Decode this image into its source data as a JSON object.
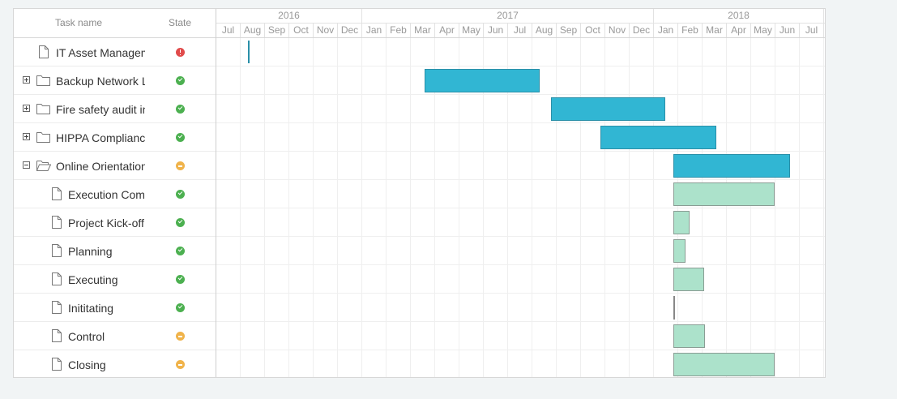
{
  "grid": {
    "header": {
      "task_name": "Task name",
      "state": "State"
    },
    "rows": [
      {
        "label": "IT Asset Managem",
        "level": 0,
        "icon": "file-icon",
        "toggle": "none",
        "state": "error"
      },
      {
        "label": "Backup Network Li",
        "level": 0,
        "icon": "folder-icon",
        "toggle": "plus",
        "state": "done"
      },
      {
        "label": "Fire safety audit in",
        "level": 0,
        "icon": "folder-icon",
        "toggle": "plus",
        "state": "done"
      },
      {
        "label": "HIPPA Compliance",
        "level": 0,
        "icon": "folder-icon",
        "toggle": "plus",
        "state": "done"
      },
      {
        "label": "Online Orientation",
        "level": 0,
        "icon": "folder-open-icon",
        "toggle": "minus",
        "state": "in-progress"
      },
      {
        "label": "Execution Comp",
        "level": 1,
        "icon": "file-icon",
        "toggle": "none",
        "state": "done"
      },
      {
        "label": "Project Kick-off I",
        "level": 1,
        "icon": "file-icon",
        "toggle": "none",
        "state": "done"
      },
      {
        "label": "Planning",
        "level": 1,
        "icon": "file-icon",
        "toggle": "none",
        "state": "done"
      },
      {
        "label": "Executing",
        "level": 1,
        "icon": "file-icon",
        "toggle": "none",
        "state": "done"
      },
      {
        "label": "Inititating",
        "level": 1,
        "icon": "file-icon",
        "toggle": "none",
        "state": "done"
      },
      {
        "label": "Control",
        "level": 1,
        "icon": "file-icon",
        "toggle": "none",
        "state": "in-progress"
      },
      {
        "label": "Closing",
        "level": 1,
        "icon": "file-icon",
        "toggle": "none",
        "state": "in-progress"
      }
    ]
  },
  "timeline": {
    "years": [
      {
        "label": "2016",
        "months": 6
      },
      {
        "label": "2017",
        "months": 12
      },
      {
        "label": "2018",
        "months": 7
      }
    ],
    "months": [
      "Jul",
      "Aug",
      "Sep",
      "Oct",
      "Nov",
      "Dec",
      "Jan",
      "Feb",
      "Mar",
      "Apr",
      "May",
      "Jun",
      "Jul",
      "Aug",
      "Sep",
      "Oct",
      "Nov",
      "Dec",
      "Jan",
      "Feb",
      "Mar",
      "Apr",
      "May",
      "Jun",
      "Jul"
    ],
    "bars": [
      {
        "row": 0,
        "start": 1.3,
        "end": 1.3,
        "kind": "milestone"
      },
      {
        "row": 1,
        "start": 8.55,
        "end": 13.3,
        "kind": "project"
      },
      {
        "row": 2,
        "start": 13.75,
        "end": 18.45,
        "kind": "project"
      },
      {
        "row": 3,
        "start": 15.8,
        "end": 20.55,
        "kind": "project"
      },
      {
        "row": 4,
        "start": 18.8,
        "end": 23.6,
        "kind": "project"
      },
      {
        "row": 5,
        "start": 18.8,
        "end": 22.95,
        "kind": "task"
      },
      {
        "row": 6,
        "start": 18.8,
        "end": 19.45,
        "kind": "task"
      },
      {
        "row": 7,
        "start": 18.8,
        "end": 19.3,
        "kind": "task"
      },
      {
        "row": 8,
        "start": 18.8,
        "end": 20.05,
        "kind": "task"
      },
      {
        "row": 9,
        "start": 18.8,
        "end": 18.8,
        "kind": "thin"
      },
      {
        "row": 10,
        "start": 18.8,
        "end": 20.1,
        "kind": "task"
      },
      {
        "row": 11,
        "start": 18.8,
        "end": 22.95,
        "kind": "task"
      }
    ]
  }
}
